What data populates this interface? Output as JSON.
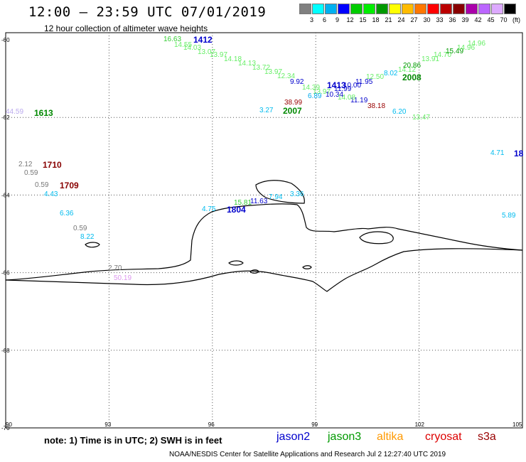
{
  "title": "12:00 – 23:59 UTC 07/01/2019",
  "subtitle": "12 hour collection of altimeter wave heights",
  "scale": {
    "colors": [
      "#808080",
      "#00ffff",
      "#00b0f0",
      "#0000ff",
      "#00cc00",
      "#00ee00",
      "#009900",
      "#ffff00",
      "#ffbb00",
      "#ff7700",
      "#ff0000",
      "#bb0000",
      "#880000",
      "#aa00aa",
      "#bb66ff",
      "#ddaaff",
      "#000000"
    ],
    "labels": [
      "3",
      "6",
      "9",
      "12",
      "15",
      "18",
      "21",
      "24",
      "27",
      "30",
      "33",
      "36",
      "39",
      "42",
      "45",
      "70",
      "(ft)"
    ]
  },
  "axes": {
    "y_ticks": [
      "-60",
      "-62",
      "-64",
      "-66",
      "-68",
      "-70"
    ],
    "x_ticks": [
      "90",
      "93",
      "96",
      "99",
      "102",
      "105"
    ]
  },
  "points": [
    {
      "t": "16.63",
      "c": "#33cc33"
    },
    {
      "t": "14.55",
      "c": "#66ee66"
    },
    {
      "t": "14.03",
      "c": "#66ee66"
    },
    {
      "t": "13.07",
      "c": "#66ee66"
    },
    {
      "t": "13.97",
      "c": "#66ee66"
    },
    {
      "t": "14.18",
      "c": "#66ee66"
    },
    {
      "t": "14.13",
      "c": "#66ee66"
    },
    {
      "t": "13.72",
      "c": "#66ee66"
    },
    {
      "t": "13.97",
      "c": "#66ee66"
    },
    {
      "t": "12.34",
      "c": "#66ee66"
    },
    {
      "t": "9.92",
      "c": "#0000cc"
    },
    {
      "t": "14.39",
      "c": "#66ee66"
    },
    {
      "t": "13.97",
      "c": "#66ee66"
    },
    {
      "t": "10.34",
      "c": "#0000cc"
    },
    {
      "t": "11.99",
      "c": "#0000cc"
    },
    {
      "t": "10.00",
      "c": "#0000cc"
    },
    {
      "t": "11.95",
      "c": "#0000cc"
    },
    {
      "t": "11.19",
      "c": "#0000cc"
    },
    {
      "t": "14.08",
      "c": "#66ee66"
    },
    {
      "t": "6.89",
      "c": "#00aaee"
    },
    {
      "t": "38.99",
      "c": "#990000"
    },
    {
      "t": "38.18",
      "c": "#990000"
    },
    {
      "t": "3.27",
      "c": "#00bbee"
    },
    {
      "t": "6.20",
      "c": "#00bbee"
    },
    {
      "t": "13.47",
      "c": "#66ee66"
    },
    {
      "t": "12.50",
      "c": "#66ee66"
    },
    {
      "t": "8.02",
      "c": "#00bbee"
    },
    {
      "t": "14.12",
      "c": "#66ee66"
    },
    {
      "t": "20.86",
      "c": "#009900"
    },
    {
      "t": "13.91",
      "c": "#66ee66"
    },
    {
      "t": "14.70",
      "c": "#66ee66"
    },
    {
      "t": "15.49",
      "c": "#009900"
    },
    {
      "t": "14.96",
      "c": "#66ee66"
    },
    {
      "t": "14.96",
      "c": "#66ee66"
    },
    {
      "t": "44.59",
      "c": "#bbaaee"
    },
    {
      "t": "2.12",
      "c": "#777777"
    },
    {
      "t": "0.59",
      "c": "#777777"
    },
    {
      "t": "0.59",
      "c": "#777777"
    },
    {
      "t": "4.43",
      "c": "#00bbee"
    },
    {
      "t": "6.36",
      "c": "#00bbee"
    },
    {
      "t": "0.59",
      "c": "#777777"
    },
    {
      "t": "8.22",
      "c": "#00bbee"
    },
    {
      "t": "2.70",
      "c": "#777777"
    },
    {
      "t": "50.19",
      "c": "#dd99ee"
    },
    {
      "t": "4.75",
      "c": "#00bbee"
    },
    {
      "t": "15.81",
      "c": "#33cc33"
    },
    {
      "t": "11.63",
      "c": "#0000cc"
    },
    {
      "t": "7.94",
      "c": "#00bbee"
    },
    {
      "t": "3.36",
      "c": "#00bbee"
    },
    {
      "t": "4.71",
      "c": "#00bbee"
    },
    {
      "t": "5.89",
      "c": "#00bbee"
    }
  ],
  "times": [
    {
      "t": "1412",
      "c": "#0000cc"
    },
    {
      "t": "1413",
      "c": "#0000cc"
    },
    {
      "t": "2008",
      "c": "#008800"
    },
    {
      "t": "2007",
      "c": "#008800"
    },
    {
      "t": "1613",
      "c": "#008800"
    },
    {
      "t": "1710",
      "c": "#880000"
    },
    {
      "t": "1709",
      "c": "#880000"
    },
    {
      "t": "1804",
      "c": "#0000cc"
    },
    {
      "t": "18",
      "c": "#0000cc"
    }
  ],
  "note": "note:  1) Time is in UTC;  2) SWH is in feet",
  "legend": [
    {
      "name": "jason2",
      "c": "#0000cc"
    },
    {
      "name": "jason3",
      "c": "#009900"
    },
    {
      "name": "altika",
      "c": "#ff9900"
    },
    {
      "name": "cryosat",
      "c": "#dd0000"
    },
    {
      "name": "s3a",
      "c": "#990000"
    }
  ],
  "credit": "NOAA/NESDIS Center for Satellite Applications and Research    Jul  2 12:27:40 UTC 2019"
}
